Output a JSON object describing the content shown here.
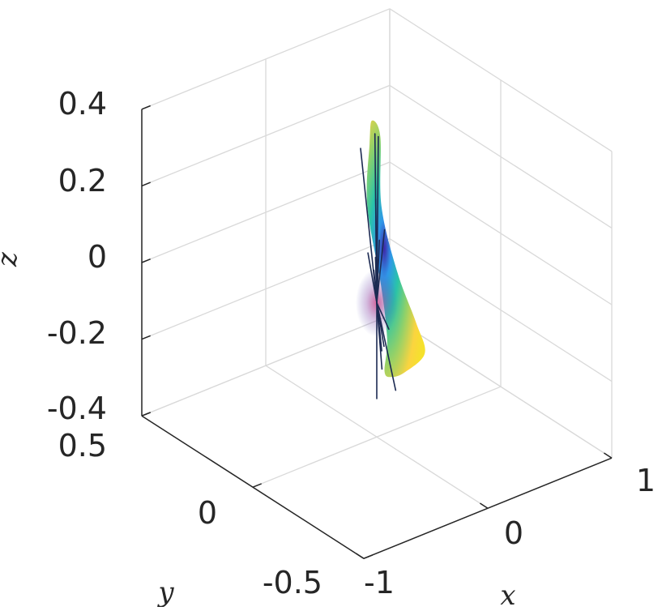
{
  "chart_data": {
    "type": "surface",
    "xlabel": "x",
    "ylabel": "y",
    "zlabel": "z",
    "xlim": [
      -1,
      1
    ],
    "ylim": [
      -0.5,
      0.5
    ],
    "zlim": [
      -0.4,
      0.4
    ],
    "x_ticks": [
      -1,
      0,
      1
    ],
    "y_ticks": [
      -0.5,
      0,
      0.5
    ],
    "z_ticks": [
      -0.4,
      -0.2,
      0,
      0.2,
      0.4
    ],
    "x_tick_labels": [
      "-1",
      "0",
      "1"
    ],
    "y_tick_labels": [
      "-0.5",
      "0",
      "0.5"
    ],
    "z_tick_labels": [
      "-0.4",
      "-0.2",
      "0",
      "0.2",
      "0.4"
    ],
    "grid": true,
    "box": true,
    "colormap": [
      "#3e26a8",
      "#2f97e9",
      "#2ac4a8",
      "#8fd16a",
      "#fbd43f",
      "#f5e12c"
    ],
    "ray_color": "#1c2a52",
    "surface_center": [
      0.0,
      0.0,
      -0.05
    ],
    "surface_outline": [
      [
        -0.15,
        -0.1,
        0.44
      ],
      [
        0.05,
        0.05,
        0.4
      ],
      [
        0.3,
        0.2,
        0.25
      ],
      [
        0.55,
        0.35,
        0.0
      ],
      [
        0.75,
        0.4,
        -0.25
      ],
      [
        0.8,
        0.4,
        -0.4
      ],
      [
        0.6,
        0.3,
        -0.42
      ],
      [
        0.3,
        0.1,
        -0.32
      ],
      [
        0.05,
        -0.1,
        -0.2
      ],
      [
        -0.15,
        -0.3,
        -0.05
      ],
      [
        -0.4,
        -0.4,
        0.1
      ],
      [
        -0.55,
        -0.4,
        0.25
      ],
      [
        -0.5,
        -0.3,
        0.38
      ]
    ],
    "ray_endpoints": [
      [
        -0.22,
        -0.05,
        0.4
      ],
      [
        0.2,
        0.12,
        0.32
      ],
      [
        -0.65,
        -0.35,
        0.25
      ],
      [
        0.55,
        0.3,
        0.2
      ],
      [
        -0.25,
        -0.1,
        0.15
      ],
      [
        0.35,
        0.2,
        0.1
      ],
      [
        -0.1,
        -0.05,
        0.1
      ],
      [
        0.2,
        0.1,
        0.05
      ],
      [
        -0.35,
        -0.25,
        0.02
      ],
      [
        0.6,
        0.3,
        -0.05
      ],
      [
        -0.3,
        -0.2,
        -0.05
      ],
      [
        0.55,
        0.3,
        -0.12
      ],
      [
        -0.05,
        -0.05,
        -0.15
      ],
      [
        0.45,
        0.25,
        -0.22
      ],
      [
        0.0,
        0.0,
        -0.3
      ],
      [
        0.4,
        0.2,
        -0.35
      ],
      [
        0.6,
        0.25,
        -0.45
      ]
    ]
  }
}
